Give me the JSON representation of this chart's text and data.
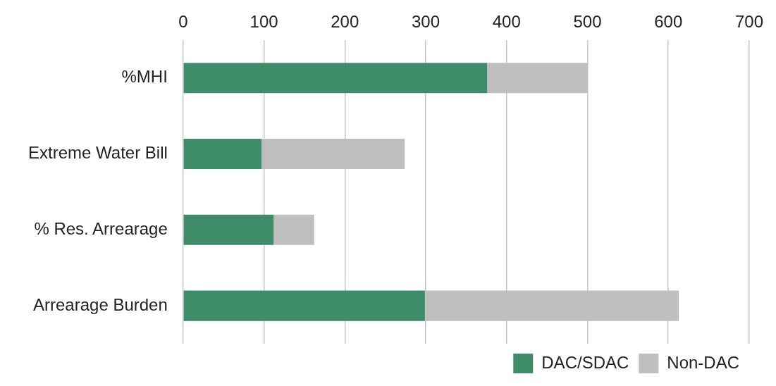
{
  "chart_data": {
    "type": "bar",
    "orientation": "horizontal",
    "stacked": true,
    "categories": [
      "%MHI",
      "Extreme Water Bill",
      "% Res. Arrearage",
      "Arrearage Burden"
    ],
    "series": [
      {
        "name": "DAC/SDAC",
        "color": "#3f8c6a",
        "values": [
          376,
          97,
          112,
          299
        ]
      },
      {
        "name": "Non-DAC",
        "color": "#bfbfbf",
        "values": [
          124,
          177,
          50,
          314
        ]
      }
    ],
    "xlim": [
      0,
      700
    ],
    "xticks": [
      0,
      100,
      200,
      300,
      400,
      500,
      600,
      700
    ],
    "grid": "x",
    "legend": "bottom right"
  }
}
